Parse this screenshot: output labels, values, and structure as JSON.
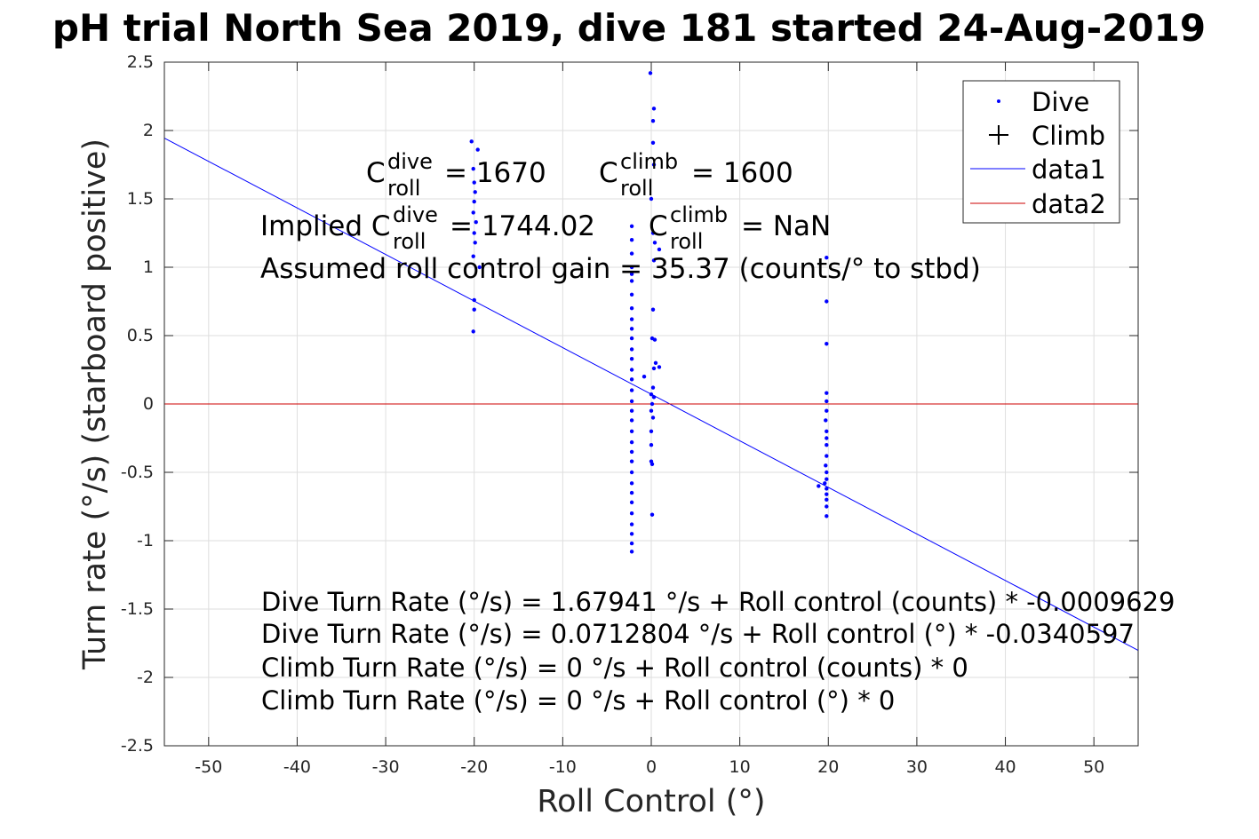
{
  "chart_data": {
    "type": "scatter",
    "title": "pH trial North Sea 2019, dive 181 started 24-Aug-2019",
    "xlabel": "Roll Control (°)",
    "ylabel": "Turn rate (°/s) (starboard positive)",
    "xlim": [
      -55,
      55
    ],
    "ylim": [
      -2.5,
      2.5
    ],
    "grid": true,
    "x_ticks": [
      -50,
      -40,
      -30,
      -20,
      -10,
      0,
      10,
      20,
      30,
      40,
      50
    ],
    "y_ticks": [
      -2.5,
      -2,
      -1.5,
      -1,
      -0.5,
      0,
      0.5,
      1,
      1.5,
      2,
      2.5
    ],
    "legend_position": "top-right",
    "legend": [
      {
        "label": "Dive",
        "marker": "dot",
        "color": "#0000ff"
      },
      {
        "label": "Climb",
        "marker": "plus",
        "color": "#000000"
      },
      {
        "label": "data1",
        "marker": "line",
        "color": "#0000ff"
      },
      {
        "label": "data2",
        "marker": "line",
        "color": "#cc0000"
      }
    ],
    "series": [
      {
        "name": "Dive",
        "marker": "dot",
        "color": "#0000ff",
        "points": [
          [
            -20.3,
            1.92
          ],
          [
            -19.6,
            1.86
          ],
          [
            -20.1,
            1.72
          ],
          [
            -20.0,
            1.62
          ],
          [
            -19.9,
            1.55
          ],
          [
            -20.0,
            1.48
          ],
          [
            -20.1,
            1.4
          ],
          [
            -19.8,
            1.33
          ],
          [
            -20.0,
            1.25
          ],
          [
            -19.9,
            1.18
          ],
          [
            -20.1,
            1.08
          ],
          [
            -19.4,
            1.0
          ],
          [
            -20.0,
            0.76
          ],
          [
            -20.0,
            0.69
          ],
          [
            -20.1,
            0.53
          ],
          [
            -2.2,
            1.3
          ],
          [
            -2.2,
            1.2
          ],
          [
            -2.2,
            1.1
          ],
          [
            -2.2,
            1.0
          ],
          [
            -2.2,
            0.95
          ],
          [
            -2.2,
            0.9
          ],
          [
            -2.2,
            0.8
          ],
          [
            -2.2,
            0.7
          ],
          [
            -2.2,
            0.62
          ],
          [
            -2.2,
            0.55
          ],
          [
            -2.2,
            0.48
          ],
          [
            -2.2,
            0.4
          ],
          [
            -2.2,
            0.33
          ],
          [
            -2.2,
            0.25
          ],
          [
            -2.2,
            0.18
          ],
          [
            -2.2,
            0.1
          ],
          [
            -2.2,
            0.02
          ],
          [
            -2.2,
            -0.05
          ],
          [
            -2.2,
            -0.12
          ],
          [
            -2.2,
            -0.2
          ],
          [
            -2.2,
            -0.28
          ],
          [
            -2.2,
            -0.35
          ],
          [
            -2.2,
            -0.42
          ],
          [
            -2.2,
            -0.5
          ],
          [
            -2.2,
            -0.58
          ],
          [
            -2.2,
            -0.65
          ],
          [
            -2.2,
            -0.72
          ],
          [
            -2.2,
            -0.8
          ],
          [
            -2.2,
            -0.88
          ],
          [
            -2.2,
            -0.95
          ],
          [
            -2.2,
            -1.02
          ],
          [
            -2.2,
            -1.08
          ],
          [
            -0.1,
            2.42
          ],
          [
            0.3,
            2.16
          ],
          [
            0.2,
            2.07
          ],
          [
            0.2,
            1.91
          ],
          [
            0.3,
            1.75
          ],
          [
            0.0,
            1.5
          ],
          [
            0.2,
            1.25
          ],
          [
            0.4,
            1.18
          ],
          [
            0.9,
            1.13
          ],
          [
            0.3,
            1.05
          ],
          [
            0.2,
            0.69
          ],
          [
            0.1,
            0.48
          ],
          [
            0.4,
            0.47
          ],
          [
            0.5,
            0.3
          ],
          [
            0.3,
            0.26
          ],
          [
            0.9,
            0.27
          ],
          [
            -0.8,
            0.2
          ],
          [
            0.2,
            0.12
          ],
          [
            0.0,
            0.07
          ],
          [
            0.3,
            0.05
          ],
          [
            0.1,
            0.0
          ],
          [
            0.0,
            -0.05
          ],
          [
            0.2,
            -0.1
          ],
          [
            0.0,
            -0.2
          ],
          [
            0.0,
            -0.3
          ],
          [
            0.0,
            -0.42
          ],
          [
            0.1,
            -0.44
          ],
          [
            0.1,
            -0.81
          ],
          [
            19.8,
            1.07
          ],
          [
            19.8,
            0.75
          ],
          [
            19.8,
            0.44
          ],
          [
            19.8,
            0.08
          ],
          [
            19.8,
            0.02
          ],
          [
            19.8,
            -0.05
          ],
          [
            19.7,
            -0.12
          ],
          [
            19.8,
            -0.2
          ],
          [
            19.8,
            -0.25
          ],
          [
            19.8,
            -0.3
          ],
          [
            19.8,
            -0.38
          ],
          [
            19.7,
            -0.45
          ],
          [
            19.8,
            -0.5
          ],
          [
            19.8,
            -0.55
          ],
          [
            19.6,
            -0.58
          ],
          [
            19.8,
            -0.62
          ],
          [
            19.8,
            -0.66
          ],
          [
            19.8,
            -0.7
          ],
          [
            19.8,
            -0.75
          ],
          [
            19.8,
            -0.82
          ],
          [
            18.9,
            -0.6
          ]
        ]
      },
      {
        "name": "data1",
        "type": "line",
        "color": "#0000ff",
        "points": [
          [
            -55,
            1.9445
          ],
          [
            55,
            -1.8021
          ]
        ]
      },
      {
        "name": "data2",
        "type": "line",
        "color": "#cc0000",
        "points": [
          [
            -55,
            0
          ],
          [
            55,
            0
          ]
        ]
      }
    ],
    "annotations": {
      "c_dive": {
        "base": "C",
        "sup": "dive",
        "sub": "roll",
        "text": "= 1670"
      },
      "c_climb": {
        "base": "C",
        "sup": "climb",
        "sub": "roll",
        "text": "= 1600"
      },
      "implied_dive": {
        "prefix": "Implied C",
        "sup": "dive",
        "sub": "roll",
        "text": "= 1744.02"
      },
      "implied_climb": {
        "base": "C",
        "sup": "climb",
        "sub": "roll",
        "text": "= NaN"
      },
      "gain": "Assumed roll control gain = 35.37 (counts/° to stbd)",
      "fit_lines": [
        "Dive Turn Rate (°/s) = 1.67941 °/s + Roll control (counts) * -0.0009629",
        "Dive Turn Rate (°/s) = 0.0712804 °/s + Roll control (°) * -0.0340597",
        "Climb Turn Rate (°/s) = 0 °/s + Roll control (counts) * 0",
        "Climb Turn Rate (°/s) = 0 °/s + Roll control (°) * 0"
      ]
    }
  }
}
